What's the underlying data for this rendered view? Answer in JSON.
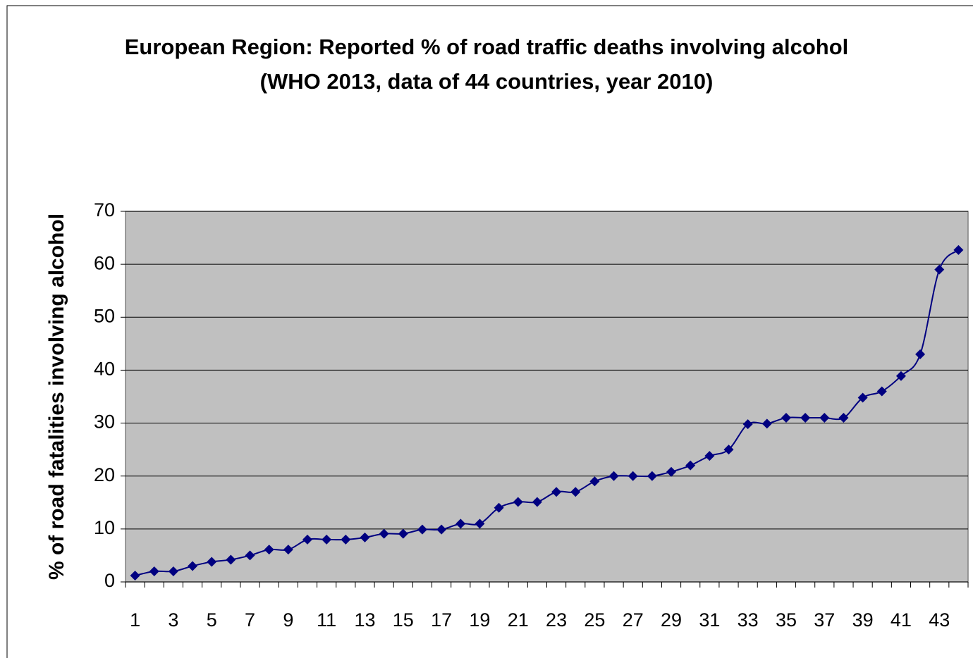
{
  "chart_data": {
    "type": "line",
    "title": "European Region: Reported % of road traffic deaths involving alcohol (WHO 2013, data of 44 countries, year 2010)",
    "y_label": "% of road fatalities involving alcohol",
    "categories": [
      1,
      null,
      3,
      null,
      5,
      null,
      7,
      null,
      9,
      null,
      11,
      null,
      13,
      null,
      15,
      null,
      17,
      null,
      19,
      null,
      21,
      null,
      23,
      null,
      25,
      null,
      27,
      null,
      29,
      null,
      31,
      null,
      33,
      null,
      35,
      null,
      37,
      null,
      39,
      null,
      41,
      null,
      43,
      null
    ],
    "series": [
      {
        "color": "#000080",
        "values": [
          1.2,
          2,
          2,
          3,
          3.8,
          4.2,
          5,
          6.1,
          6.1,
          8,
          8,
          8,
          8.4,
          9.1,
          9.1,
          9.9,
          9.9,
          11,
          11,
          14,
          15.1,
          15.1,
          17,
          17,
          19,
          20,
          20,
          20,
          20.8,
          22,
          23.8,
          25,
          29.8,
          29.9,
          31,
          31,
          31,
          31,
          34.8,
          36,
          38.9,
          43,
          59,
          62.7
        ]
      }
    ],
    "ylim": [
      0,
      70
    ],
    "yticks": [
      0,
      10,
      20,
      30,
      40,
      50,
      60,
      70
    ],
    "grid": true,
    "smooth": true
  }
}
